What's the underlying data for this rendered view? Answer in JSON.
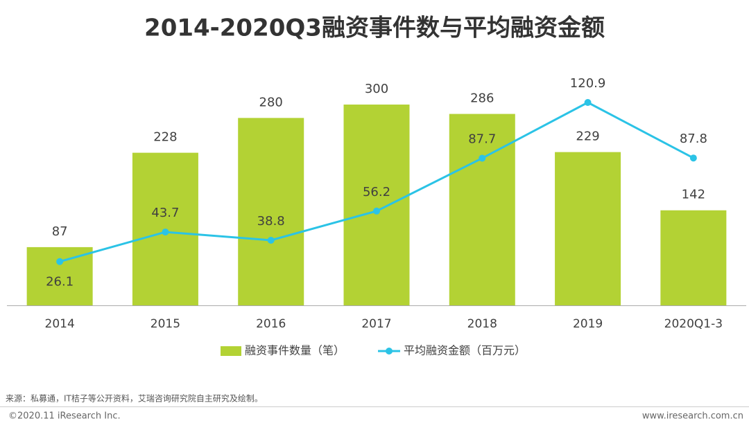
{
  "chart_data": {
    "type": "bar-line",
    "title": "2014-2020Q3融资事件数与平均融资金额",
    "categories": [
      "2014",
      "2015",
      "2016",
      "2017",
      "2018",
      "2019",
      "2020Q1-3"
    ],
    "series": [
      {
        "name": "融资事件数量（笔）",
        "type": "bar",
        "color": "#b3d234",
        "values": [
          87,
          228,
          280,
          300,
          286,
          229,
          142
        ]
      },
      {
        "name": "平均融资金额（百万元）",
        "type": "line",
        "axis": "y2",
        "color": "#2bc3e6",
        "values": [
          26.1,
          43.7,
          38.8,
          56.2,
          87.7,
          120.9,
          87.8
        ]
      }
    ],
    "legend": "bottom"
  },
  "source": "来源：私募通，IT桔子等公开资料，艾瑞咨询研究院自主研究及绘制。",
  "copyright": "©2020.11 iResearch Inc.",
  "website": "www.iresearch.com.cn"
}
